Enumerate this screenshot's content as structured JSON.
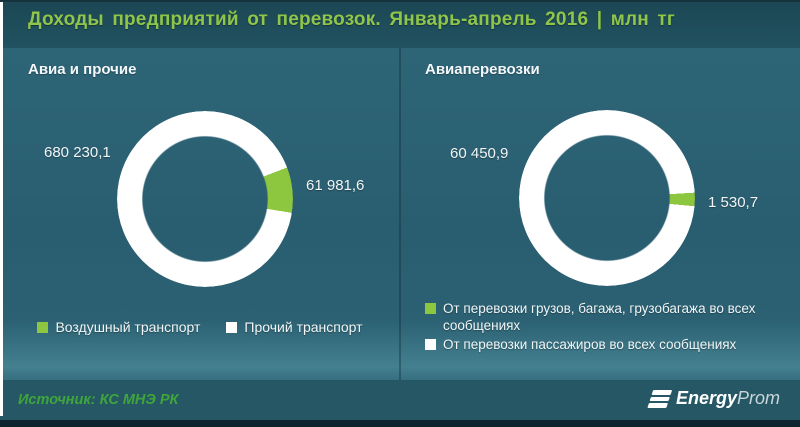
{
  "title": "Доходы предприятий от перевозок. Январь-апрель 2016 | млн тг",
  "colors": {
    "accent_green": "#8dc63f",
    "series_white": "#ffffff",
    "header_bg": "#1c4754",
    "panel_bg": "#2a6072",
    "footer_bg": "#255765",
    "title_green": "#8ec54a",
    "source_green": "#3fa53b"
  },
  "chart_data": [
    {
      "type": "pie",
      "subtype": "donut",
      "title": "Авиа и прочие",
      "units": "млн тг",
      "legend_position": "bottom",
      "start_angle_deg": 69,
      "series": [
        {
          "name": "Воздушный транспорт",
          "value": 61981.6,
          "label": "61 981,6",
          "color": "#8dc63f"
        },
        {
          "name": "Прочий транспорт",
          "value": 680230.1,
          "label": "680 230,1",
          "color": "#ffffff"
        }
      ]
    },
    {
      "type": "pie",
      "subtype": "donut",
      "title": "Авиаперевозки",
      "units": "млн тг",
      "legend_position": "bottom",
      "start_angle_deg": 86.5,
      "series": [
        {
          "name": "От перевозки грузов, багажа, грузобагажа во всех сообщениях",
          "value": 1530.7,
          "label": "1 530,7",
          "color": "#8dc63f"
        },
        {
          "name": "От перевозки пассажиров во всех сообщениях",
          "value": 60450.9,
          "label": "60 450,9",
          "color": "#ffffff"
        }
      ]
    }
  ],
  "footer": {
    "source": "Источник: КС МНЭ РК",
    "brand": {
      "bold": "Energy",
      "light": "Prom"
    }
  }
}
